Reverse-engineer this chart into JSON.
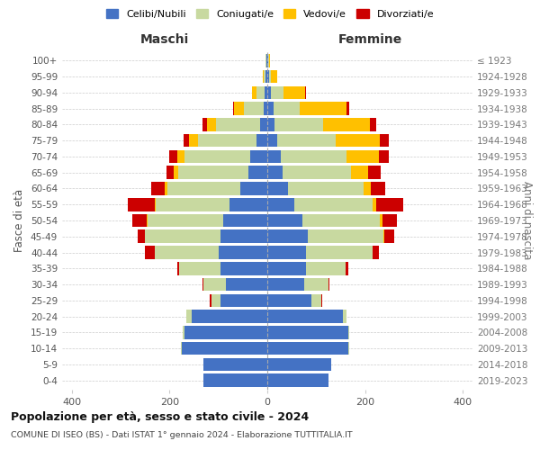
{
  "age_groups": [
    "0-4",
    "5-9",
    "10-14",
    "15-19",
    "20-24",
    "25-29",
    "30-34",
    "35-39",
    "40-44",
    "45-49",
    "50-54",
    "55-59",
    "60-64",
    "65-69",
    "70-74",
    "75-79",
    "80-84",
    "85-89",
    "90-94",
    "95-99",
    "100+"
  ],
  "birth_years": [
    "2019-2023",
    "2014-2018",
    "2009-2013",
    "2004-2008",
    "1999-2003",
    "1994-1998",
    "1989-1993",
    "1984-1988",
    "1979-1983",
    "1974-1978",
    "1969-1973",
    "1964-1968",
    "1959-1963",
    "1954-1958",
    "1949-1953",
    "1944-1948",
    "1939-1943",
    "1934-1938",
    "1929-1933",
    "1924-1928",
    "≤ 1923"
  ],
  "maschi": {
    "celibi": [
      130,
      130,
      175,
      170,
      155,
      95,
      85,
      95,
      100,
      95,
      90,
      78,
      55,
      38,
      35,
      22,
      15,
      8,
      5,
      3,
      2
    ],
    "coniugati": [
      0,
      0,
      2,
      3,
      10,
      20,
      45,
      85,
      130,
      155,
      155,
      150,
      150,
      145,
      135,
      120,
      90,
      40,
      18,
      4,
      2
    ],
    "vedovi": [
      0,
      0,
      0,
      0,
      0,
      0,
      0,
      0,
      0,
      1,
      2,
      3,
      5,
      8,
      15,
      18,
      18,
      20,
      8,
      2,
      0
    ],
    "divorziati": [
      0,
      0,
      0,
      0,
      0,
      2,
      2,
      5,
      20,
      15,
      30,
      55,
      28,
      15,
      15,
      12,
      10,
      2,
      0,
      0,
      0
    ]
  },
  "femmine": {
    "nubili": [
      125,
      130,
      165,
      165,
      155,
      90,
      75,
      80,
      80,
      82,
      72,
      55,
      42,
      32,
      28,
      20,
      15,
      12,
      8,
      3,
      2
    ],
    "coniugate": [
      0,
      0,
      2,
      3,
      8,
      20,
      50,
      80,
      135,
      155,
      158,
      160,
      155,
      140,
      135,
      120,
      100,
      55,
      25,
      5,
      2
    ],
    "vedove": [
      0,
      0,
      0,
      0,
      0,
      0,
      0,
      0,
      1,
      2,
      5,
      8,
      15,
      35,
      65,
      90,
      95,
      95,
      45,
      12,
      2
    ],
    "divorziate": [
      0,
      0,
      0,
      0,
      0,
      2,
      2,
      5,
      12,
      20,
      30,
      55,
      30,
      25,
      20,
      18,
      12,
      5,
      2,
      0,
      0
    ]
  },
  "colors": {
    "celibi": "#4472c4",
    "coniugati": "#c8d9a0",
    "vedovi": "#ffc000",
    "divorziati": "#cc0000"
  },
  "legend_labels": [
    "Celibi/Nubili",
    "Coniugati/e",
    "Vedovi/e",
    "Divorziati/e"
  ],
  "xlim": 420,
  "title_main": "Popolazione per età, sesso e stato civile - 2024",
  "title_sub": "COMUNE DI ISEO (BS) - Dati ISTAT 1° gennaio 2024 - Elaborazione TUTTITALIA.IT",
  "xlabel_left": "Maschi",
  "xlabel_right": "Femmine",
  "ylabel_left": "Fasce di età",
  "ylabel_right": "Anni di nascita",
  "bar_height": 0.82
}
